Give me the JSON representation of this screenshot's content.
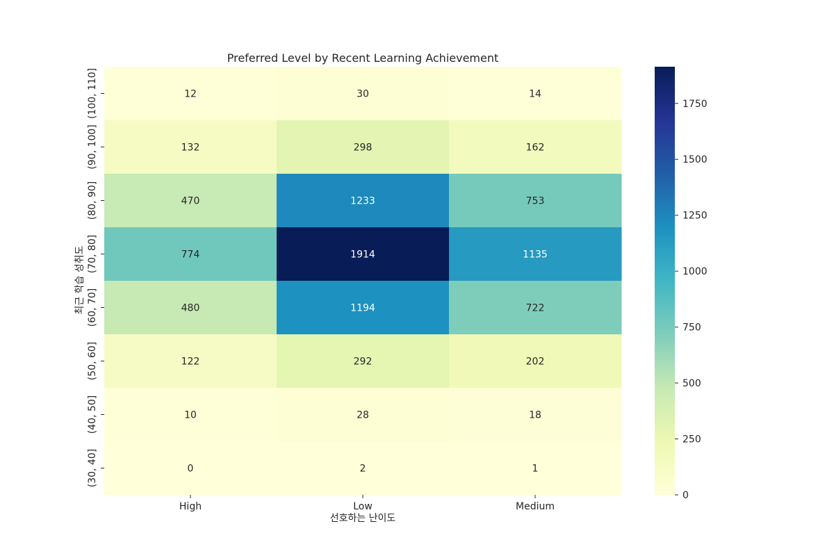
{
  "chart_data": {
    "type": "heatmap",
    "title": "Preferred Level by Recent Learning Achievement",
    "xlabel": "선호하는 난이도",
    "ylabel": "최근 학습 성취도",
    "columns": [
      "High",
      "Low",
      "Medium"
    ],
    "rows": [
      "(100, 110]",
      "(90, 100]",
      "(80, 90]",
      "(70, 80]",
      "(60, 70]",
      "(50, 60]",
      "(40, 50]",
      "(30, 40]"
    ],
    "values": [
      [
        12,
        30,
        14
      ],
      [
        132,
        298,
        162
      ],
      [
        470,
        1233,
        753
      ],
      [
        774,
        1914,
        1135
      ],
      [
        480,
        1194,
        722
      ],
      [
        122,
        292,
        202
      ],
      [
        10,
        28,
        18
      ],
      [
        0,
        2,
        1
      ]
    ],
    "colormap": "YlGnBu",
    "colorbar": {
      "range": [
        0,
        1914
      ],
      "ticks": [
        0,
        250,
        500,
        750,
        1000,
        1250,
        1500,
        1750
      ]
    }
  }
}
